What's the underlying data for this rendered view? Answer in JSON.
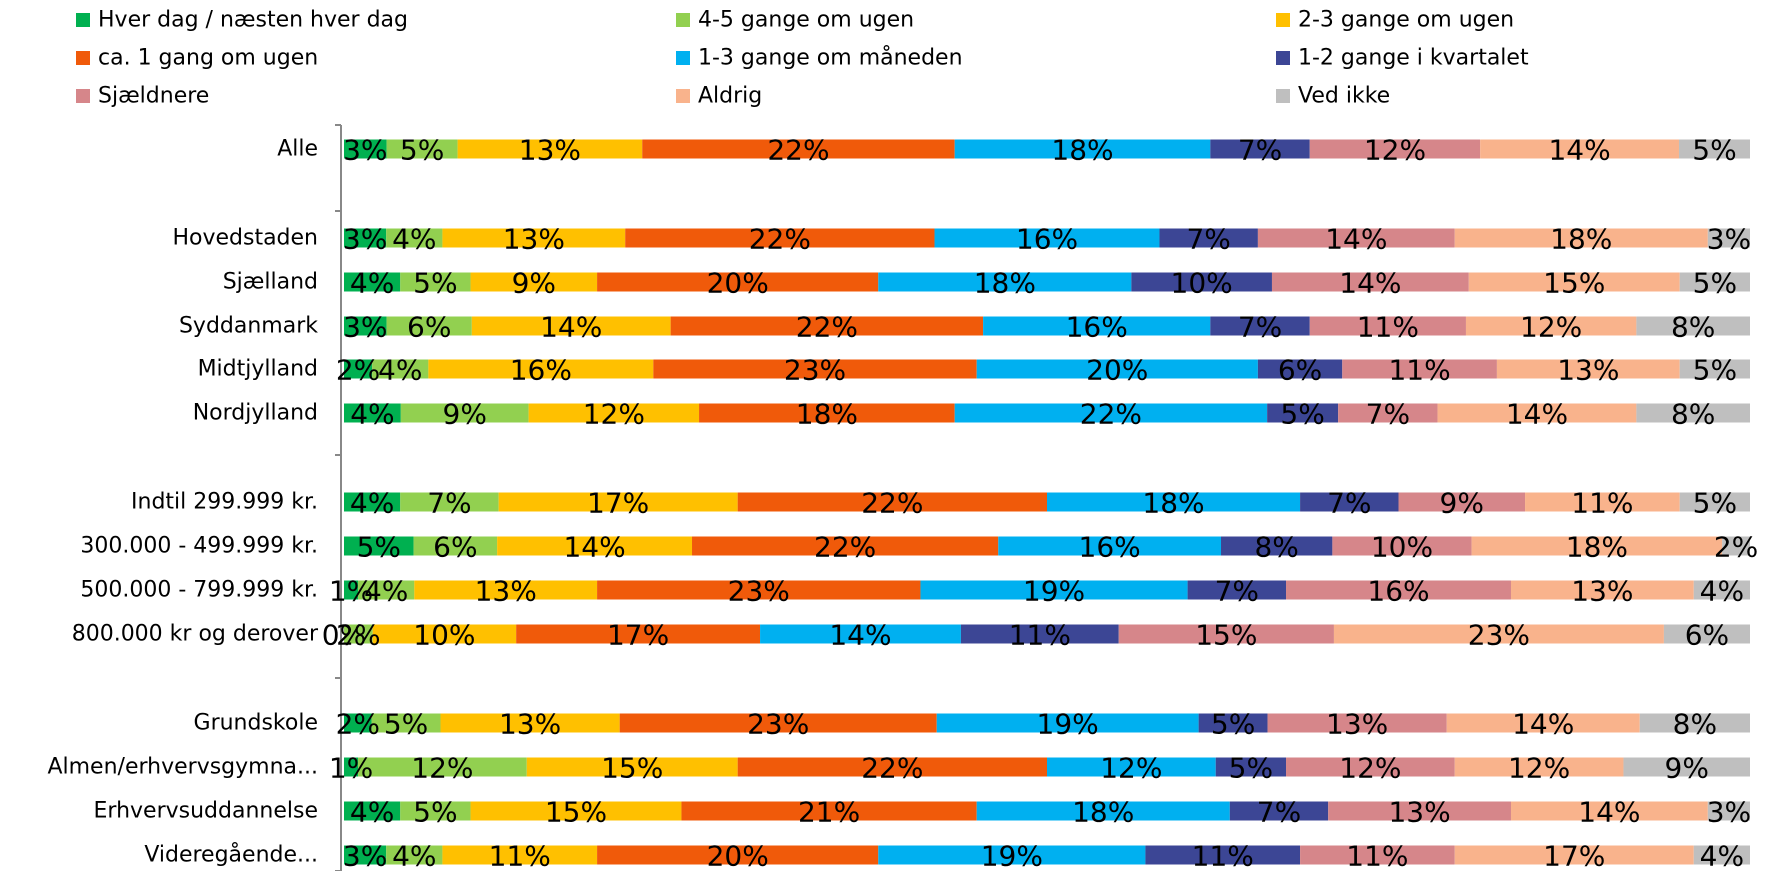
{
  "chart_data": {
    "type": "bar",
    "orientation": "horizontal",
    "stacked": "percent",
    "legend_position": "top",
    "grid": false,
    "xlim": [
      0,
      100
    ],
    "categories": [
      "Alle",
      "",
      "Hovedstaden",
      "Sjælland",
      "Syddanmark",
      "Midtjylland",
      "Nordjylland",
      "",
      "Indtil 299.999 kr.",
      "300.000 - 499.999 kr.",
      "500.000 - 799.999 kr.",
      "800.000 kr og derover",
      "",
      "Grundskole",
      "Almen/erhvervsgymna...",
      "Erhvervsuddannelse",
      "Videregående..."
    ],
    "series": [
      {
        "name": "Hver dag / næsten hver dag",
        "color": "#00B050",
        "values": [
          3,
          null,
          3,
          4,
          3,
          2,
          4,
          null,
          4,
          5,
          1,
          0,
          null,
          2,
          1,
          4,
          3
        ]
      },
      {
        "name": "4-5 gange om ugen",
        "color": "#92D050",
        "values": [
          5,
          null,
          4,
          5,
          6,
          4,
          9,
          null,
          7,
          6,
          4,
          2,
          null,
          5,
          12,
          5,
          4
        ]
      },
      {
        "name": "2-3 gange om ugen",
        "color": "#FFC000",
        "values": [
          13,
          null,
          13,
          9,
          14,
          16,
          12,
          null,
          17,
          14,
          13,
          10,
          null,
          13,
          15,
          15,
          11
        ]
      },
      {
        "name": "ca. 1 gang om ugen",
        "color": "#F05A0A",
        "values": [
          22,
          null,
          22,
          20,
          22,
          23,
          18,
          null,
          22,
          22,
          23,
          17,
          null,
          23,
          22,
          21,
          20
        ]
      },
      {
        "name": "1-3 gange om måneden",
        "color": "#00B0F0",
        "values": [
          18,
          null,
          16,
          18,
          16,
          20,
          22,
          null,
          18,
          16,
          19,
          14,
          null,
          19,
          12,
          18,
          19
        ]
      },
      {
        "name": "1-2 gange i kvartalet",
        "color": "#3C4695",
        "values": [
          7,
          null,
          7,
          10,
          7,
          6,
          5,
          null,
          7,
          8,
          7,
          11,
          null,
          5,
          5,
          7,
          11
        ]
      },
      {
        "name": "Sjældnere",
        "color": "#D6868A",
        "values": [
          12,
          null,
          14,
          14,
          11,
          11,
          7,
          null,
          9,
          10,
          16,
          15,
          null,
          13,
          12,
          13,
          11
        ]
      },
      {
        "name": "Aldrig",
        "color": "#F9B38C",
        "values": [
          14,
          null,
          18,
          15,
          12,
          13,
          14,
          null,
          11,
          18,
          13,
          23,
          null,
          14,
          12,
          14,
          17
        ]
      },
      {
        "name": "Ved ikke",
        "color": "#BFBFBF",
        "values": [
          5,
          null,
          3,
          5,
          8,
          5,
          8,
          null,
          5,
          2,
          4,
          6,
          null,
          8,
          9,
          3,
          4
        ]
      }
    ]
  }
}
